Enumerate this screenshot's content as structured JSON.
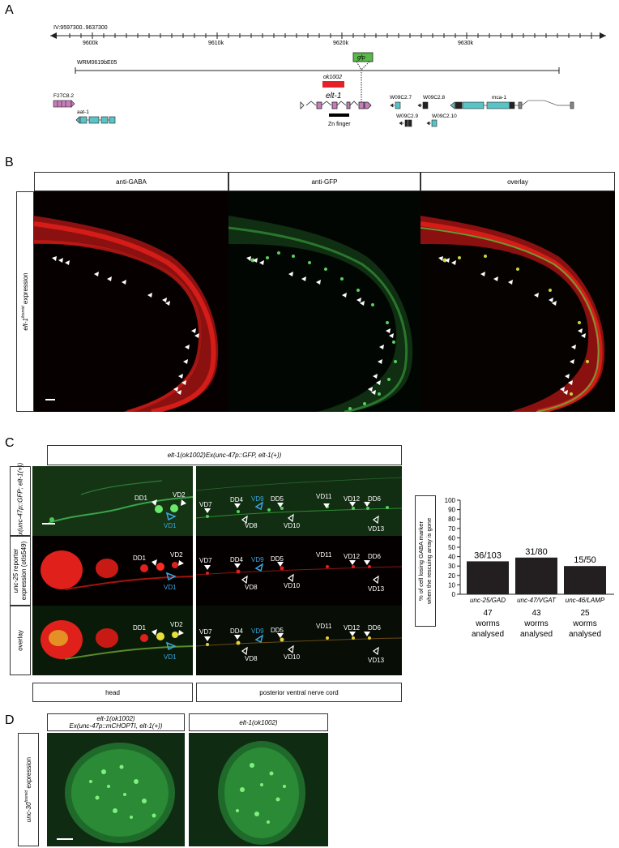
{
  "panelA": {
    "label": "A",
    "coord": "IV:9597300..9637300",
    "ticks": [
      "9600k",
      "9610k",
      "9620k",
      "9630k"
    ],
    "fosmid": "WRM0619bE05",
    "gfp": "gfp",
    "allele": "ok1002",
    "gene": "elt-1",
    "zinc": "Zn finger",
    "genes": [
      "F27C8.2",
      "aat-1",
      "W09C2.7",
      "W09C2.8",
      "mca-1",
      "W09C2.9",
      "W09C2.10"
    ]
  },
  "panelB": {
    "label": "B",
    "headers": [
      "anti-GABA",
      "anti-GFP",
      "overlay"
    ],
    "side_italic": "elt-1",
    "side_sup": "fosmid",
    "side_rest": " expression"
  },
  "panelC": {
    "label": "C",
    "top_title": "elt-1(ok1002)Ex(unc-47p::GFP, elt-1(+))",
    "row1_side": "Ex(unc-47p::GFP; elt-1(+))",
    "row2_side_a": "unc-25",
    "row2_side_b": " reporter",
    "row2_side_c": "expression (otIs549)",
    "row3_side": "overlay",
    "neurons": {
      "dd1": "DD1",
      "vd2": "VD2",
      "vd1": "VD1",
      "vd7": "VD7",
      "dd4": "DD4",
      "vd9": "VD9",
      "dd5": "DD5",
      "vd8": "VD8",
      "vd10": "VD10",
      "vd11": "VD11",
      "vd12": "VD12",
      "dd6": "DD6",
      "vd13": "VD13"
    },
    "bottom": [
      "head",
      "posterior ventral nerve cord"
    ],
    "ylabel_line1": "% of cell losing GABA marker",
    "ylabel_line2": "when the rescuing array is gone",
    "yticks": [
      "0",
      "10",
      "20",
      "30",
      "40",
      "50",
      "60",
      "70",
      "80",
      "90",
      "100"
    ],
    "bar_labels": [
      "36/103",
      "31/80",
      "15/50"
    ],
    "markers": [
      "unc-25/GAD",
      "unc-47/VGAT",
      "unc-46/LAMP"
    ],
    "worms": [
      {
        "n": "47",
        "w": "worms",
        "a": "analysed"
      },
      {
        "n": "43",
        "w": "worms",
        "a": "analysed"
      },
      {
        "n": "25",
        "w": "worms",
        "a": "analysed"
      }
    ]
  },
  "chart_data": {
    "type": "bar",
    "categories": [
      "unc-25/GAD",
      "unc-47/VGAT",
      "unc-46/LAMP"
    ],
    "values": [
      35,
      39,
      30
    ],
    "ylabel": "% of cell losing GABA marker when the rescuing array is gone",
    "ylim": [
      0,
      100
    ],
    "bar_color": "#231f20"
  },
  "panelD": {
    "label": "D",
    "col1_a": "elt-1(ok1002)",
    "col1_b": "Ex(unc-47p::mCHOPTI, elt-1(+))",
    "col2": "elt-1(ok1002)",
    "side_italic": "unc-30",
    "side_sup": "fosmid",
    "side_rest": " expression"
  },
  "colors": {
    "red": "#e0201a",
    "green": "#3fbf3f",
    "magenta": "#c77dbb",
    "cyan": "#58c4c6",
    "gfp_box": "#59b947",
    "ok1002_box": "#e4202a",
    "blue_label": "#2a9fd6"
  }
}
